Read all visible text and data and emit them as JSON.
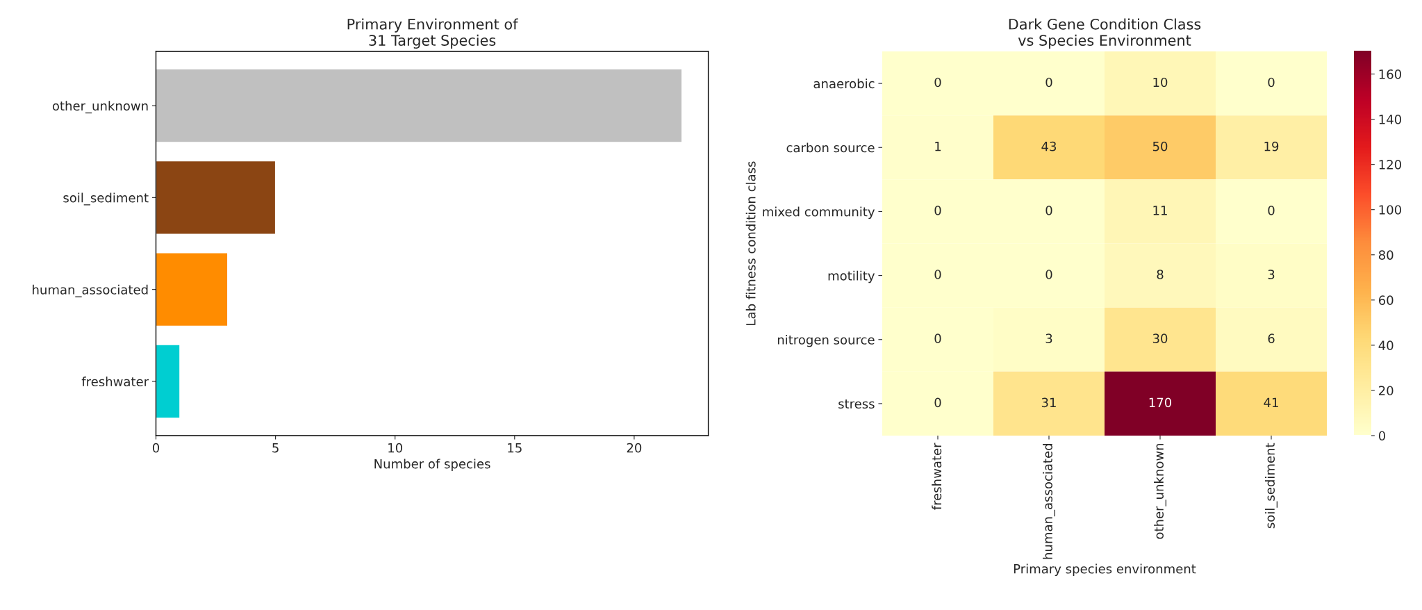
{
  "chart_data": [
    {
      "type": "bar",
      "orientation": "horizontal",
      "title": "Primary Environment of\n31 Target Species",
      "xlabel": "Number of species",
      "categories": [
        "other_unknown",
        "soil_sediment",
        "human_associated",
        "freshwater"
      ],
      "values": [
        22,
        5,
        3,
        1
      ],
      "colors": [
        "#c0c0c0",
        "#8b4513",
        "#ff8c00",
        "#00ced1"
      ],
      "xlim": [
        0,
        23.1
      ],
      "xticks": [
        0,
        5,
        10,
        15,
        20
      ],
      "grid": false,
      "legend": false
    },
    {
      "type": "heatmap",
      "title": "Dark Gene Condition Class\nvs Species Environment",
      "xlabel": "Primary species environment",
      "ylabel": "Lab fitness condition class",
      "categories": [
        "freshwater",
        "human_associated",
        "other_unknown",
        "soil_sediment"
      ],
      "y_categories": [
        "anaerobic",
        "carbon source",
        "mixed community",
        "motility",
        "nitrogen source",
        "stress"
      ],
      "cells": [
        [
          0,
          0,
          10,
          0
        ],
        [
          1,
          43,
          50,
          19
        ],
        [
          0,
          0,
          11,
          0
        ],
        [
          0,
          0,
          8,
          3
        ],
        [
          0,
          3,
          30,
          6
        ],
        [
          0,
          31,
          170,
          41
        ]
      ],
      "data_labels": true,
      "clim": [
        0,
        170
      ],
      "cticks": [
        0,
        20,
        40,
        60,
        80,
        100,
        120,
        140,
        160
      ]
    }
  ]
}
